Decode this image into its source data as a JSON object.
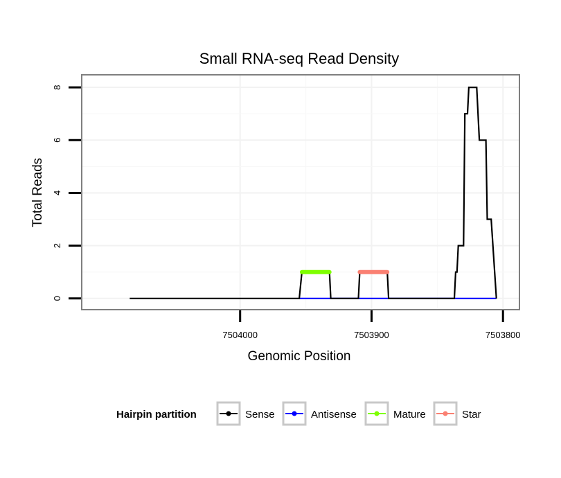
{
  "chart_data": {
    "type": "line",
    "title": "Small RNA-seq Read Density",
    "xlabel": "Genomic Position",
    "ylabel": "Total Reads",
    "xlim": [
      7504120,
      7503788
    ],
    "ylim": [
      -0.4,
      8.45
    ],
    "x_reversed": true,
    "x_ticks": [
      7504000,
      7503900,
      7503800
    ],
    "x_tick_labels": [
      "7504000",
      "7503900",
      "7503800"
    ],
    "y_ticks": [
      0,
      2,
      4,
      6,
      8
    ],
    "y_tick_labels": [
      "0",
      "2",
      "4",
      "6",
      "8"
    ],
    "grid": true,
    "legend": {
      "title": "Hairpin partition",
      "position": "bottom",
      "entries": [
        {
          "label": "Sense",
          "color": "#000000"
        },
        {
          "label": "Antisense",
          "color": "#0000FF"
        },
        {
          "label": "Mature",
          "color": "#7FFF00"
        },
        {
          "label": "Star",
          "color": "#FA8072"
        }
      ]
    },
    "series": [
      {
        "name": "Sense",
        "color": "#000000",
        "points": [
          [
            7504084,
            0
          ],
          [
            7503955,
            0
          ],
          [
            7503953,
            1
          ],
          [
            7503932,
            1
          ],
          [
            7503931,
            0
          ],
          [
            7503910,
            0
          ],
          [
            7503909,
            1
          ],
          [
            7503888,
            1
          ],
          [
            7503887,
            0
          ],
          [
            7503837,
            0
          ],
          [
            7503836,
            1
          ],
          [
            7503835,
            1
          ],
          [
            7503834,
            2
          ],
          [
            7503830,
            2
          ],
          [
            7503829,
            7
          ],
          [
            7503827,
            7
          ],
          [
            7503826,
            8
          ],
          [
            7503820,
            8
          ],
          [
            7503818,
            6
          ],
          [
            7503813,
            6
          ],
          [
            7503812,
            3
          ],
          [
            7503809,
            3
          ],
          [
            7503805,
            0
          ]
        ]
      },
      {
        "name": "Antisense",
        "color": "#0000FF",
        "points": [
          [
            7503955,
            0
          ],
          [
            7503931,
            0
          ],
          [
            7503910,
            0
          ],
          [
            7503887,
            0
          ],
          [
            7503837,
            0
          ],
          [
            7503805,
            0
          ]
        ]
      },
      {
        "name": "Mature",
        "color": "#7FFF00",
        "points": [
          [
            7503953,
            1
          ],
          [
            7503932,
            1
          ]
        ]
      },
      {
        "name": "Star",
        "color": "#FA8072",
        "points": [
          [
            7503909,
            1
          ],
          [
            7503888,
            1
          ]
        ]
      }
    ]
  }
}
